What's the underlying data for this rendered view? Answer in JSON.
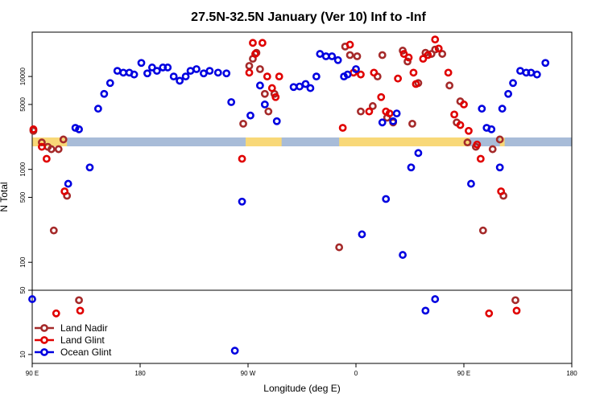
{
  "chart_data": {
    "type": "scatter",
    "title": "27.5N-32.5N January (Ver 10)   Inf to -Inf",
    "xlabel": "Longitude (deg E)",
    "ylabel": "N Total",
    "x_ticks": [
      {
        "value": 90,
        "label": "90 E"
      },
      {
        "value": 180,
        "label": "180"
      },
      {
        "value": 270,
        "label": "90 W"
      },
      {
        "value": 360,
        "label": "0"
      },
      {
        "value": 450,
        "label": "90 E"
      },
      {
        "value": 540,
        "label": "180"
      }
    ],
    "xlim": [
      90,
      540
    ],
    "upper_panel": {
      "scale": "log",
      "ylim": [
        50,
        30000
      ],
      "ticks": [
        {
          "value": 50,
          "label": "50"
        },
        {
          "value": 100,
          "label": "100"
        },
        {
          "value": 500,
          "label": "500"
        },
        {
          "value": 1000,
          "label": "1000"
        },
        {
          "value": 5000,
          "label": "5000"
        },
        {
          "value": 10000,
          "label": "10000"
        }
      ]
    },
    "lower_panel": {
      "scale": "log",
      "ylim": [
        8,
        50
      ],
      "ticks": [
        {
          "value": 10,
          "label": "10"
        },
        {
          "value": 50,
          "label": "50"
        }
      ]
    },
    "colors": {
      "land_mask": "#f8d878",
      "ocean_mask": "#a8bcd8"
    },
    "series": [
      {
        "name": "Land Nadir",
        "color": "#a52a2a",
        "points": [
          [
            91,
            2600
          ],
          [
            98,
            1950
          ],
          [
            103,
            1750
          ],
          [
            106,
            1650
          ],
          [
            108,
            220
          ],
          [
            112,
            1650
          ],
          [
            116,
            2100
          ],
          [
            119,
            520
          ],
          [
            129,
            39
          ],
          [
            266,
            3100
          ],
          [
            271,
            13000
          ],
          [
            274,
            15500
          ],
          [
            277,
            18000
          ],
          [
            280,
            12000
          ],
          [
            284,
            6500
          ],
          [
            287,
            4200
          ],
          [
            292,
            6500
          ],
          [
            346,
            145
          ],
          [
            351,
            21000
          ],
          [
            355,
            17000
          ],
          [
            361,
            16500
          ],
          [
            364,
            4200
          ],
          [
            374,
            4800
          ],
          [
            378,
            10000
          ],
          [
            382,
            17000
          ],
          [
            386,
            3600
          ],
          [
            391,
            3200
          ],
          [
            399,
            19000
          ],
          [
            403,
            14500
          ],
          [
            407,
            3100
          ],
          [
            412,
            8500
          ],
          [
            418,
            18000
          ],
          [
            423,
            17500
          ],
          [
            426,
            19500
          ],
          [
            432,
            17500
          ],
          [
            438,
            8000
          ],
          [
            444,
            3200
          ],
          [
            447,
            5400
          ],
          [
            453,
            1950
          ],
          [
            460,
            1750
          ],
          [
            466,
            220
          ],
          [
            474,
            1650
          ],
          [
            480,
            2100
          ],
          [
            483,
            520
          ],
          [
            493,
            39
          ]
        ]
      },
      {
        "name": "Land Glint",
        "color": "#e00000",
        "points": [
          [
            91,
            2700
          ],
          [
            98,
            1750
          ],
          [
            102,
            1300
          ],
          [
            110,
            28
          ],
          [
            117,
            580
          ],
          [
            130,
            30
          ],
          [
            265,
            1300
          ],
          [
            271,
            11000
          ],
          [
            274,
            23000
          ],
          [
            276,
            17500
          ],
          [
            282,
            23000
          ],
          [
            286,
            10000
          ],
          [
            290,
            7500
          ],
          [
            293,
            6000
          ],
          [
            296,
            10000
          ],
          [
            349,
            2800
          ],
          [
            355,
            22000
          ],
          [
            358,
            11000
          ],
          [
            364,
            10500
          ],
          [
            371,
            4200
          ],
          [
            375,
            11000
          ],
          [
            381,
            6000
          ],
          [
            385,
            4200
          ],
          [
            388,
            4000
          ],
          [
            395,
            9500
          ],
          [
            400,
            17500
          ],
          [
            404,
            16000
          ],
          [
            408,
            11000
          ],
          [
            410,
            8300
          ],
          [
            416,
            15500
          ],
          [
            420,
            17000
          ],
          [
            426,
            25000
          ],
          [
            429,
            20000
          ],
          [
            437,
            11000
          ],
          [
            442,
            3900
          ],
          [
            447,
            3000
          ],
          [
            450,
            5000
          ],
          [
            454,
            2600
          ],
          [
            461,
            1850
          ],
          [
            464,
            1300
          ],
          [
            471,
            28
          ],
          [
            481,
            580
          ],
          [
            494,
            30
          ]
        ]
      },
      {
        "name": "Ocean Glint",
        "color": "#0000e0",
        "points": [
          [
            90,
            40
          ],
          [
            120,
            700
          ],
          [
            126,
            2800
          ],
          [
            129,
            2700
          ],
          [
            138,
            1050
          ],
          [
            145,
            4500
          ],
          [
            150,
            6500
          ],
          [
            155,
            8500
          ],
          [
            161,
            11500
          ],
          [
            166,
            11000
          ],
          [
            171,
            11000
          ],
          [
            175,
            10500
          ],
          [
            181,
            14000
          ],
          [
            186,
            10800
          ],
          [
            190,
            12500
          ],
          [
            194,
            11500
          ],
          [
            199,
            12500
          ],
          [
            203,
            12500
          ],
          [
            208,
            10000
          ],
          [
            213,
            9000
          ],
          [
            218,
            10000
          ],
          [
            222,
            11500
          ],
          [
            227,
            12000
          ],
          [
            233,
            10800
          ],
          [
            238,
            11500
          ],
          [
            245,
            11000
          ],
          [
            252,
            10800
          ],
          [
            256,
            5300
          ],
          [
            259,
            11
          ],
          [
            265,
            450
          ],
          [
            272,
            3800
          ],
          [
            280,
            8000
          ],
          [
            284,
            5000
          ],
          [
            294,
            3300
          ],
          [
            308,
            7700
          ],
          [
            313,
            7800
          ],
          [
            318,
            8300
          ],
          [
            322,
            7500
          ],
          [
            327,
            10000
          ],
          [
            330,
            17500
          ],
          [
            335,
            16500
          ],
          [
            340,
            16500
          ],
          [
            345,
            15000
          ],
          [
            350,
            10000
          ],
          [
            353,
            10500
          ],
          [
            360,
            12000
          ],
          [
            365,
            200
          ],
          [
            382,
            3200
          ],
          [
            385,
            480
          ],
          [
            391,
            3300
          ],
          [
            394,
            4000
          ],
          [
            399,
            120
          ],
          [
            406,
            1050
          ],
          [
            412,
            1500
          ],
          [
            418,
            30
          ],
          [
            426,
            40
          ],
          [
            456,
            700
          ],
          [
            465,
            4500
          ],
          [
            469,
            2800
          ],
          [
            473,
            2700
          ],
          [
            480,
            1050
          ],
          [
            482,
            4500
          ],
          [
            487,
            6500
          ],
          [
            491,
            8500
          ],
          [
            497,
            11500
          ],
          [
            502,
            11000
          ],
          [
            506,
            11000
          ],
          [
            511,
            10500
          ],
          [
            518,
            14000
          ]
        ]
      }
    ],
    "legend": {
      "position": "bottom-left"
    }
  }
}
